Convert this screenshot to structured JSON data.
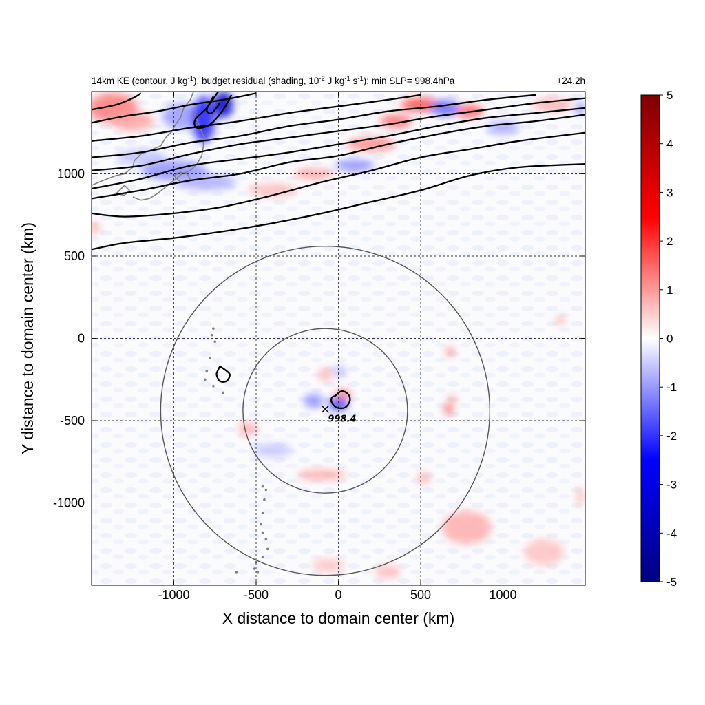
{
  "chart_data": {
    "type": "heatmap",
    "title_left_parts": [
      "14km KE (contour, J kg",
      "-1",
      "), budget residual (shading, 10",
      "-2",
      " J kg",
      "-1",
      " s",
      "-1",
      "); min SLP= 998.4hPa"
    ],
    "title_right": "+24.2h",
    "xlabel": "X distance to domain center (km)",
    "ylabel": "Y distance to domain center (km)",
    "xlim": [
      -1500,
      1500
    ],
    "ylim": [
      -1500,
      1500
    ],
    "x_ticks": [
      -1000,
      -500,
      0,
      500,
      1000
    ],
    "y_ticks": [
      -1000,
      -500,
      0,
      500,
      1000
    ],
    "x_tick_labels": [
      "-1000",
      "-500",
      "0",
      "500",
      "1000"
    ],
    "y_tick_labels": [
      "-1000",
      "-500",
      "0",
      "500",
      "1000"
    ],
    "grid": "dashed",
    "colorbar": {
      "min": -5,
      "max": 5,
      "ticks": [
        5,
        4,
        3,
        2,
        1,
        0,
        -1,
        -2,
        -3,
        -4,
        -5
      ],
      "tick_labels": [
        "5",
        "4",
        "3",
        "2",
        "1",
        "0",
        "-1",
        "-2",
        "-3",
        "-4",
        "-5"
      ],
      "colors": [
        "#00007f",
        "#0000ff",
        "#ffffff",
        "#ff0000",
        "#7f0000"
      ]
    },
    "min_slp": {
      "x": -80,
      "y": -430,
      "label": "998.4"
    },
    "range_circles": [
      {
        "center": [
          -80,
          -440
        ],
        "radius": 500
      },
      {
        "center": [
          -80,
          -440
        ],
        "radius": 1000
      }
    ],
    "ke_contours": [
      [
        [
          -1500,
          540
        ],
        [
          -1300,
          580
        ],
        [
          -1000,
          610
        ],
        [
          -700,
          650
        ],
        [
          -400,
          700
        ],
        [
          -100,
          760
        ],
        [
          200,
          830
        ],
        [
          500,
          900
        ],
        [
          800,
          990
        ],
        [
          1100,
          1040
        ],
        [
          1500,
          1060
        ]
      ],
      [
        [
          -1500,
          760
        ],
        [
          -1300,
          740
        ],
        [
          -1000,
          760
        ],
        [
          -700,
          800
        ],
        [
          -400,
          870
        ],
        [
          -100,
          950
        ],
        [
          200,
          1020
        ],
        [
          500,
          1100
        ],
        [
          800,
          1150
        ],
        [
          1100,
          1200
        ],
        [
          1500,
          1250
        ]
      ],
      [
        [
          -1500,
          850
        ],
        [
          -1200,
          900
        ],
        [
          -900,
          960
        ],
        [
          -600,
          1000
        ],
        [
          -300,
          1070
        ],
        [
          0,
          1110
        ],
        [
          300,
          1180
        ],
        [
          600,
          1240
        ],
        [
          900,
          1290
        ],
        [
          1200,
          1320
        ],
        [
          1500,
          1360
        ]
      ],
      [
        [
          -1500,
          910
        ],
        [
          -1200,
          970
        ],
        [
          -900,
          1050
        ],
        [
          -600,
          1090
        ],
        [
          -300,
          1130
        ],
        [
          0,
          1180
        ],
        [
          300,
          1230
        ],
        [
          600,
          1290
        ],
        [
          900,
          1340
        ],
        [
          1200,
          1370
        ],
        [
          1500,
          1400
        ]
      ],
      [
        [
          -1500,
          1020
        ],
        [
          -1200,
          1050
        ],
        [
          -900,
          1120
        ],
        [
          -600,
          1180
        ],
        [
          -300,
          1220
        ],
        [
          0,
          1260
        ],
        [
          300,
          1300
        ],
        [
          600,
          1350
        ],
        [
          900,
          1390
        ],
        [
          1200,
          1430
        ],
        [
          1500,
          1460
        ]
      ],
      [
        [
          -1500,
          1100
        ],
        [
          -1200,
          1130
        ],
        [
          -900,
          1190
        ],
        [
          -600,
          1230
        ],
        [
          -300,
          1290
        ],
        [
          0,
          1330
        ],
        [
          300,
          1380
        ],
        [
          600,
          1410
        ],
        [
          900,
          1450
        ],
        [
          1200,
          1480
        ]
      ],
      [
        [
          -1500,
          1200
        ],
        [
          -1200,
          1230
        ],
        [
          -900,
          1280
        ],
        [
          -600,
          1320
        ],
        [
          -300,
          1370
        ],
        [
          0,
          1410
        ],
        [
          300,
          1450
        ],
        [
          500,
          1480
        ]
      ],
      [
        [
          -1500,
          1310
        ],
        [
          -1300,
          1350
        ],
        [
          -1100,
          1380
        ],
        [
          -900,
          1420
        ],
        [
          -700,
          1450
        ],
        [
          -500,
          1490
        ]
      ],
      [
        [
          -1500,
          1390
        ],
        [
          -1350,
          1420
        ],
        [
          -1250,
          1460
        ],
        [
          -1200,
          1490
        ]
      ],
      [
        [
          -730,
          1500
        ],
        [
          -800,
          1400
        ],
        [
          -870,
          1330
        ],
        [
          -860,
          1280
        ],
        [
          -780,
          1300
        ],
        [
          -700,
          1390
        ],
        [
          -650,
          1480
        ]
      ],
      [
        [
          -760,
          1470
        ],
        [
          -800,
          1390
        ],
        [
          -770,
          1370
        ],
        [
          -720,
          1430
        ]
      ],
      [
        [
          -720,
          -170
        ],
        [
          -690,
          -190
        ],
        [
          -660,
          -220
        ],
        [
          -680,
          -260
        ],
        [
          -720,
          -260
        ],
        [
          -740,
          -220
        ],
        [
          -730,
          -190
        ],
        [
          -720,
          -170
        ]
      ],
      [
        [
          -20,
          -350
        ],
        [
          20,
          -320
        ],
        [
          60,
          -340
        ],
        [
          70,
          -380
        ],
        [
          40,
          -420
        ],
        [
          -10,
          -420
        ],
        [
          -40,
          -390
        ],
        [
          -40,
          -360
        ],
        [
          -20,
          -350
        ]
      ]
    ],
    "coastlines": [
      [
        [
          -1500,
          930
        ],
        [
          -1430,
          960
        ],
        [
          -1350,
          990
        ],
        [
          -1300,
          1000
        ],
        [
          -1250,
          1040
        ],
        [
          -1240,
          1080
        ],
        [
          -1200,
          1120
        ],
        [
          -1150,
          1140
        ],
        [
          -1080,
          1170
        ],
        [
          -1050,
          1220
        ],
        [
          -1010,
          1260
        ],
        [
          -990,
          1300
        ],
        [
          -960,
          1340
        ],
        [
          -940,
          1400
        ],
        [
          -900,
          1450
        ],
        [
          -880,
          1500
        ]
      ],
      [
        [
          -1250,
          860
        ],
        [
          -1200,
          840
        ],
        [
          -1150,
          850
        ],
        [
          -1100,
          880
        ],
        [
          -1050,
          920
        ],
        [
          -1000,
          960
        ],
        [
          -950,
          1000
        ],
        [
          -900,
          1020
        ],
        [
          -860,
          1060
        ],
        [
          -830,
          1110
        ],
        [
          -820,
          1170
        ],
        [
          -820,
          1230
        ],
        [
          -840,
          1280
        ],
        [
          -860,
          1330
        ],
        [
          -880,
          1380
        ]
      ],
      [
        [
          -1000,
          990
        ],
        [
          -960,
          1010
        ],
        [
          -920,
          1000
        ],
        [
          -900,
          970
        ],
        [
          -920,
          950
        ],
        [
          -960,
          950
        ],
        [
          -1000,
          990
        ]
      ],
      [
        [
          -1350,
          880
        ],
        [
          -1300,
          870
        ],
        [
          -1270,
          900
        ],
        [
          -1300,
          930
        ],
        [
          -1350,
          880
        ]
      ]
    ],
    "island_dots": [
      [
        -760,
        60
      ],
      [
        -770,
        20
      ],
      [
        -750,
        -20
      ],
      [
        -780,
        -120
      ],
      [
        -800,
        -200
      ],
      [
        -810,
        -250
      ],
      [
        -760,
        -290
      ],
      [
        -700,
        -330
      ],
      [
        -460,
        -900
      ],
      [
        -440,
        -920
      ],
      [
        -450,
        -980
      ],
      [
        -460,
        -1060
      ],
      [
        -470,
        -1130
      ],
      [
        -460,
        -1180
      ],
      [
        -440,
        -1220
      ],
      [
        -430,
        -1280
      ],
      [
        -460,
        -1330
      ],
      [
        -500,
        -1360
      ],
      [
        -510,
        -1400
      ],
      [
        -490,
        -1420
      ],
      [
        -620,
        -1420
      ]
    ],
    "shading_features": [
      {
        "x": -1370,
        "y": 1400,
        "rx": 150,
        "ry": 90,
        "value": 1.3
      },
      {
        "x": -1250,
        "y": 1320,
        "rx": 130,
        "ry": 60,
        "value": 0.9
      },
      {
        "x": -950,
        "y": 1350,
        "rx": 120,
        "ry": 80,
        "value": -1.0
      },
      {
        "x": -820,
        "y": 1330,
        "rx": 70,
        "ry": 140,
        "value": -2.2
      },
      {
        "x": -700,
        "y": 1420,
        "rx": 60,
        "ry": 80,
        "value": -3.5
      },
      {
        "x": -1000,
        "y": 1020,
        "rx": 200,
        "ry": 60,
        "value": -1.1
      },
      {
        "x": -800,
        "y": 950,
        "rx": 180,
        "ry": 50,
        "value": -0.8
      },
      {
        "x": -1200,
        "y": 1100,
        "rx": 150,
        "ry": 50,
        "value": -0.6
      },
      {
        "x": 500,
        "y": 1420,
        "rx": 120,
        "ry": 40,
        "value": 1.8
      },
      {
        "x": 650,
        "y": 1400,
        "rx": 90,
        "ry": 50,
        "value": -1.5
      },
      {
        "x": 350,
        "y": 1320,
        "rx": 100,
        "ry": 40,
        "value": 1.4
      },
      {
        "x": 200,
        "y": 1180,
        "rx": 150,
        "ry": 40,
        "value": 1.2
      },
      {
        "x": 100,
        "y": 1050,
        "rx": 120,
        "ry": 30,
        "value": -1.3
      },
      {
        "x": -150,
        "y": 1000,
        "rx": 120,
        "ry": 30,
        "value": 1.0
      },
      {
        "x": 800,
        "y": 1380,
        "rx": 80,
        "ry": 40,
        "value": 1.6
      },
      {
        "x": 1000,
        "y": 1280,
        "rx": 100,
        "ry": 40,
        "value": -0.9
      },
      {
        "x": 1300,
        "y": 1420,
        "rx": 120,
        "ry": 40,
        "value": 0.8
      },
      {
        "x": -400,
        "y": 900,
        "rx": 150,
        "ry": 40,
        "value": 0.7
      },
      {
        "x": -1480,
        "y": 670,
        "rx": 20,
        "ry": 20,
        "value": 2.0
      },
      {
        "x": 0,
        "y": -400,
        "rx": 60,
        "ry": 40,
        "value": -2.0
      },
      {
        "x": 30,
        "y": -340,
        "rx": 50,
        "ry": 30,
        "value": 1.3
      },
      {
        "x": 10,
        "y": -200,
        "rx": 40,
        "ry": 30,
        "value": -0.8
      },
      {
        "x": -150,
        "y": -380,
        "rx": 60,
        "ry": 40,
        "value": -1.2
      },
      {
        "x": -80,
        "y": -220,
        "rx": 40,
        "ry": 40,
        "value": 0.8
      },
      {
        "x": 670,
        "y": -430,
        "rx": 25,
        "ry": 25,
        "value": 2.2
      },
      {
        "x": 690,
        "y": -370,
        "rx": 20,
        "ry": 20,
        "value": 1.6
      },
      {
        "x": 680,
        "y": -80,
        "rx": 22,
        "ry": 22,
        "value": 1.8
      },
      {
        "x": 1350,
        "y": 110,
        "rx": 20,
        "ry": 20,
        "value": 1.5
      },
      {
        "x": -100,
        "y": -830,
        "rx": 150,
        "ry": 30,
        "value": 0.9
      },
      {
        "x": -550,
        "y": -550,
        "rx": 60,
        "ry": 40,
        "value": 0.8
      },
      {
        "x": 780,
        "y": -1150,
        "rx": 150,
        "ry": 100,
        "value": 0.8
      },
      {
        "x": -60,
        "y": -1380,
        "rx": 100,
        "ry": 40,
        "value": 0.6
      },
      {
        "x": 300,
        "y": -1420,
        "rx": 80,
        "ry": 40,
        "value": 0.7
      },
      {
        "x": 1250,
        "y": -1300,
        "rx": 120,
        "ry": 80,
        "value": 0.6
      },
      {
        "x": -400,
        "y": -680,
        "rx": 120,
        "ry": 40,
        "value": -0.6
      },
      {
        "x": 520,
        "y": -850,
        "rx": 40,
        "ry": 30,
        "value": 0.9
      },
      {
        "x": 1470,
        "y": -960,
        "rx": 15,
        "ry": 60,
        "value": 0.9
      },
      {
        "x": 1470,
        "y": 1400,
        "rx": 20,
        "ry": 40,
        "value": -1.5
      }
    ]
  }
}
